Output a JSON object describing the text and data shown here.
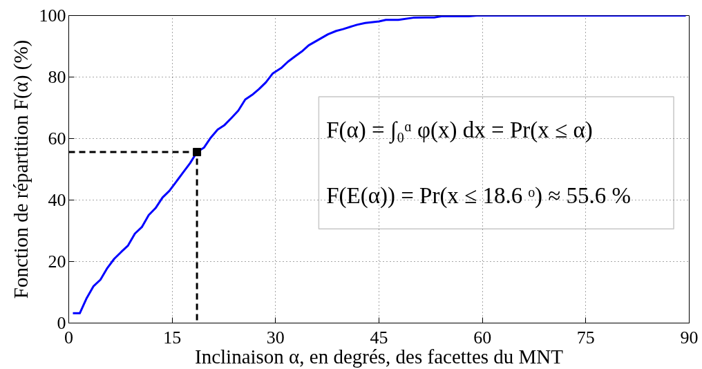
{
  "chart_data": {
    "type": "line",
    "xlabel": "Inclinaison α, en degrés, des facettes du MNT",
    "ylabel": "Fonction de répartition F(α) (%)",
    "xlim": [
      0,
      90
    ],
    "ylim": [
      0,
      100
    ],
    "xticks": [
      0,
      15,
      30,
      45,
      60,
      75,
      90
    ],
    "yticks": [
      0,
      20,
      40,
      60,
      80,
      100
    ],
    "grid": true,
    "annotations": [
      "F(α) = ∫₀ᵅ φ(x) dx = Pr(x ≤ α)",
      "F(E(α)) = Pr(x ≤ 18.6 ᵒ) ≈ 55.6 %"
    ],
    "series": [
      {
        "color": "#0000ff",
        "line_style": "solid",
        "marker": "none",
        "x": [
          0.6,
          1.6,
          2.6,
          3.6,
          4.6,
          5.6,
          6.6,
          7.6,
          8.6,
          9.6,
          10.6,
          11.6,
          12.6,
          13.6,
          14.6,
          15.6,
          16.6,
          17.6,
          18.6,
          19.6,
          20.6,
          21.6,
          22.6,
          23.6,
          24.6,
          25.6,
          26.6,
          27.6,
          28.6,
          29.6,
          30.8,
          31.8,
          32.8,
          33.8,
          34.8,
          36.2,
          37.6,
          38.8,
          39.8,
          41.8,
          43.0,
          45.0,
          46.0,
          47.8,
          50.0,
          51.8,
          53.0,
          54.2,
          58.0,
          59.2,
          89.5
        ],
        "values": [
          3.2,
          3.2,
          8.1,
          12.0,
          14.1,
          17.9,
          20.9,
          23.1,
          25.2,
          29.1,
          31.2,
          35.1,
          37.4,
          40.8,
          43.0,
          46.0,
          49.0,
          52.0,
          55.6,
          57.0,
          60.3,
          62.9,
          64.4,
          66.7,
          69.1,
          72.7,
          74.2,
          76.1,
          78.3,
          81.2,
          82.9,
          85.0,
          86.7,
          88.3,
          90.3,
          92.1,
          93.9,
          95.0,
          95.6,
          97.0,
          97.6,
          98.1,
          98.6,
          98.6,
          99.3,
          99.4,
          99.4,
          99.8,
          99.8,
          100,
          100
        ]
      },
      {
        "type": "line",
        "color": "#000000",
        "line_style": "dashed",
        "marker": "none",
        "x": [
          0,
          18.6,
          18.6
        ],
        "values": [
          55.6,
          55.6,
          0
        ]
      },
      {
        "type": "scatter",
        "color": "#000000",
        "marker": "square",
        "x": [
          18.6
        ],
        "values": [
          55.6
        ]
      }
    ]
  }
}
